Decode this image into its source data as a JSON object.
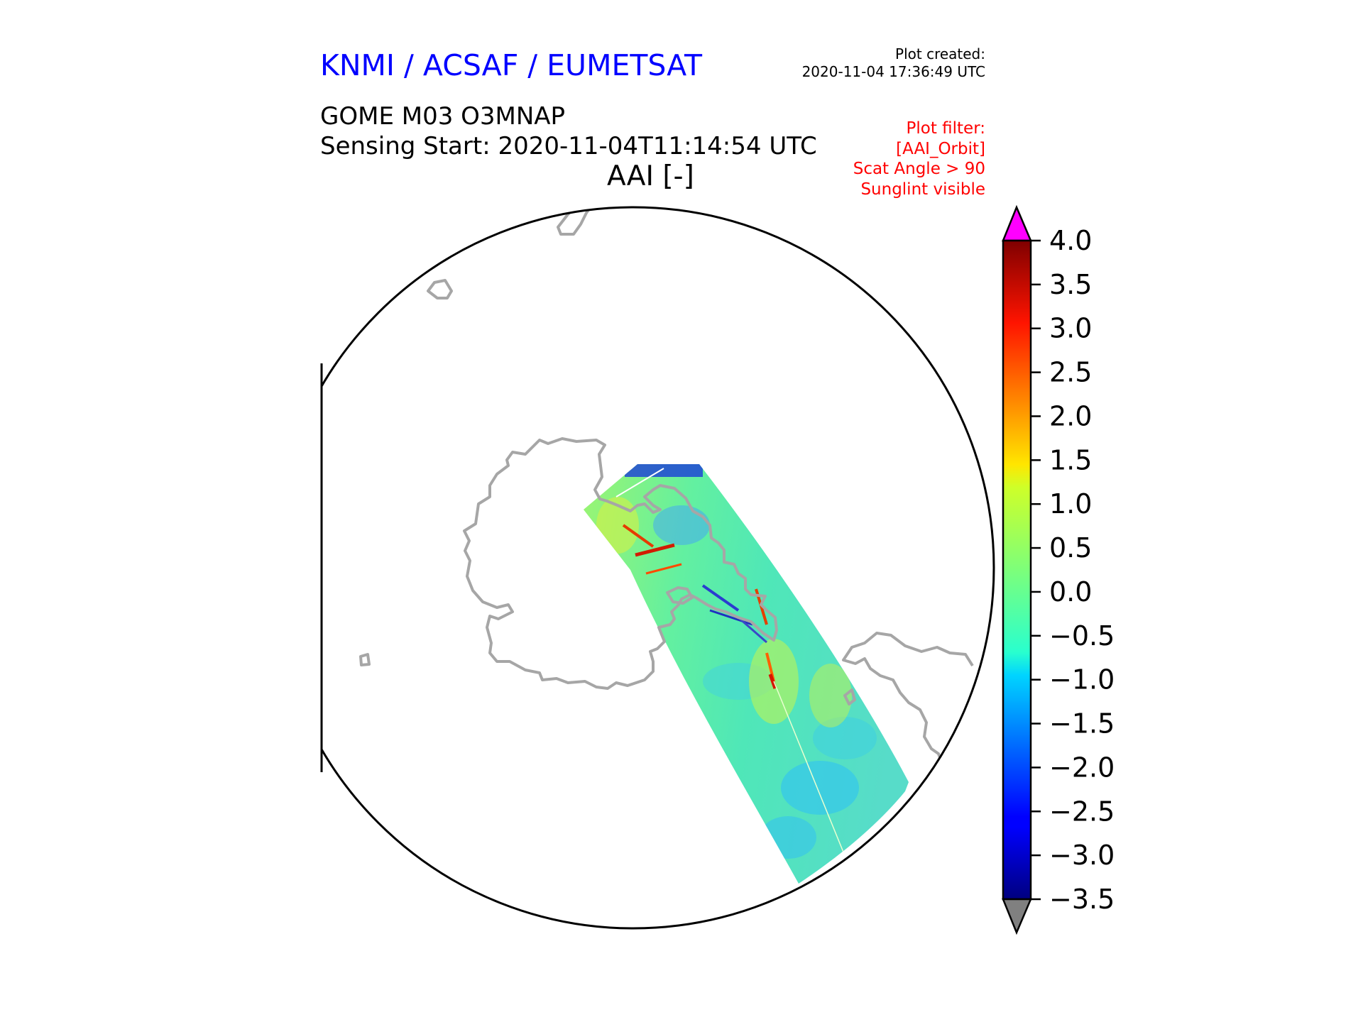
{
  "header": {
    "organisation": "KNMI / ACSAF / EUMETSAT",
    "plot_created_label": "Plot created:",
    "plot_created_time": "2020-11-04 17:36:49 UTC",
    "product": "GOME M03 O3MNAP",
    "sensing_start": "Sensing Start: 2020-11-04T11:14:54 UTC",
    "variable": "AAI [-]"
  },
  "filter": {
    "lines": [
      "Plot filter:",
      "[AAI_Orbit]",
      "Scat Angle > 90",
      "Sunglint visible"
    ]
  },
  "colorbar": {
    "min": -3.5,
    "max": 4.0,
    "ticks": [
      "4.0",
      "3.5",
      "3.0",
      "2.5",
      "2.0",
      "1.5",
      "1.0",
      "0.5",
      "0.0",
      "−0.5",
      "−1.0",
      "−1.5",
      "−2.0",
      "−2.5",
      "−3.0",
      "−3.5"
    ],
    "over_color": "#ff00ff",
    "under_color": "#808080",
    "colormap": "jet"
  },
  "map": {
    "projection": "polar stereographic (south)",
    "coastline_color": "#a6a6a6",
    "region": "Antarctica",
    "swath_colormap": "jet"
  }
}
